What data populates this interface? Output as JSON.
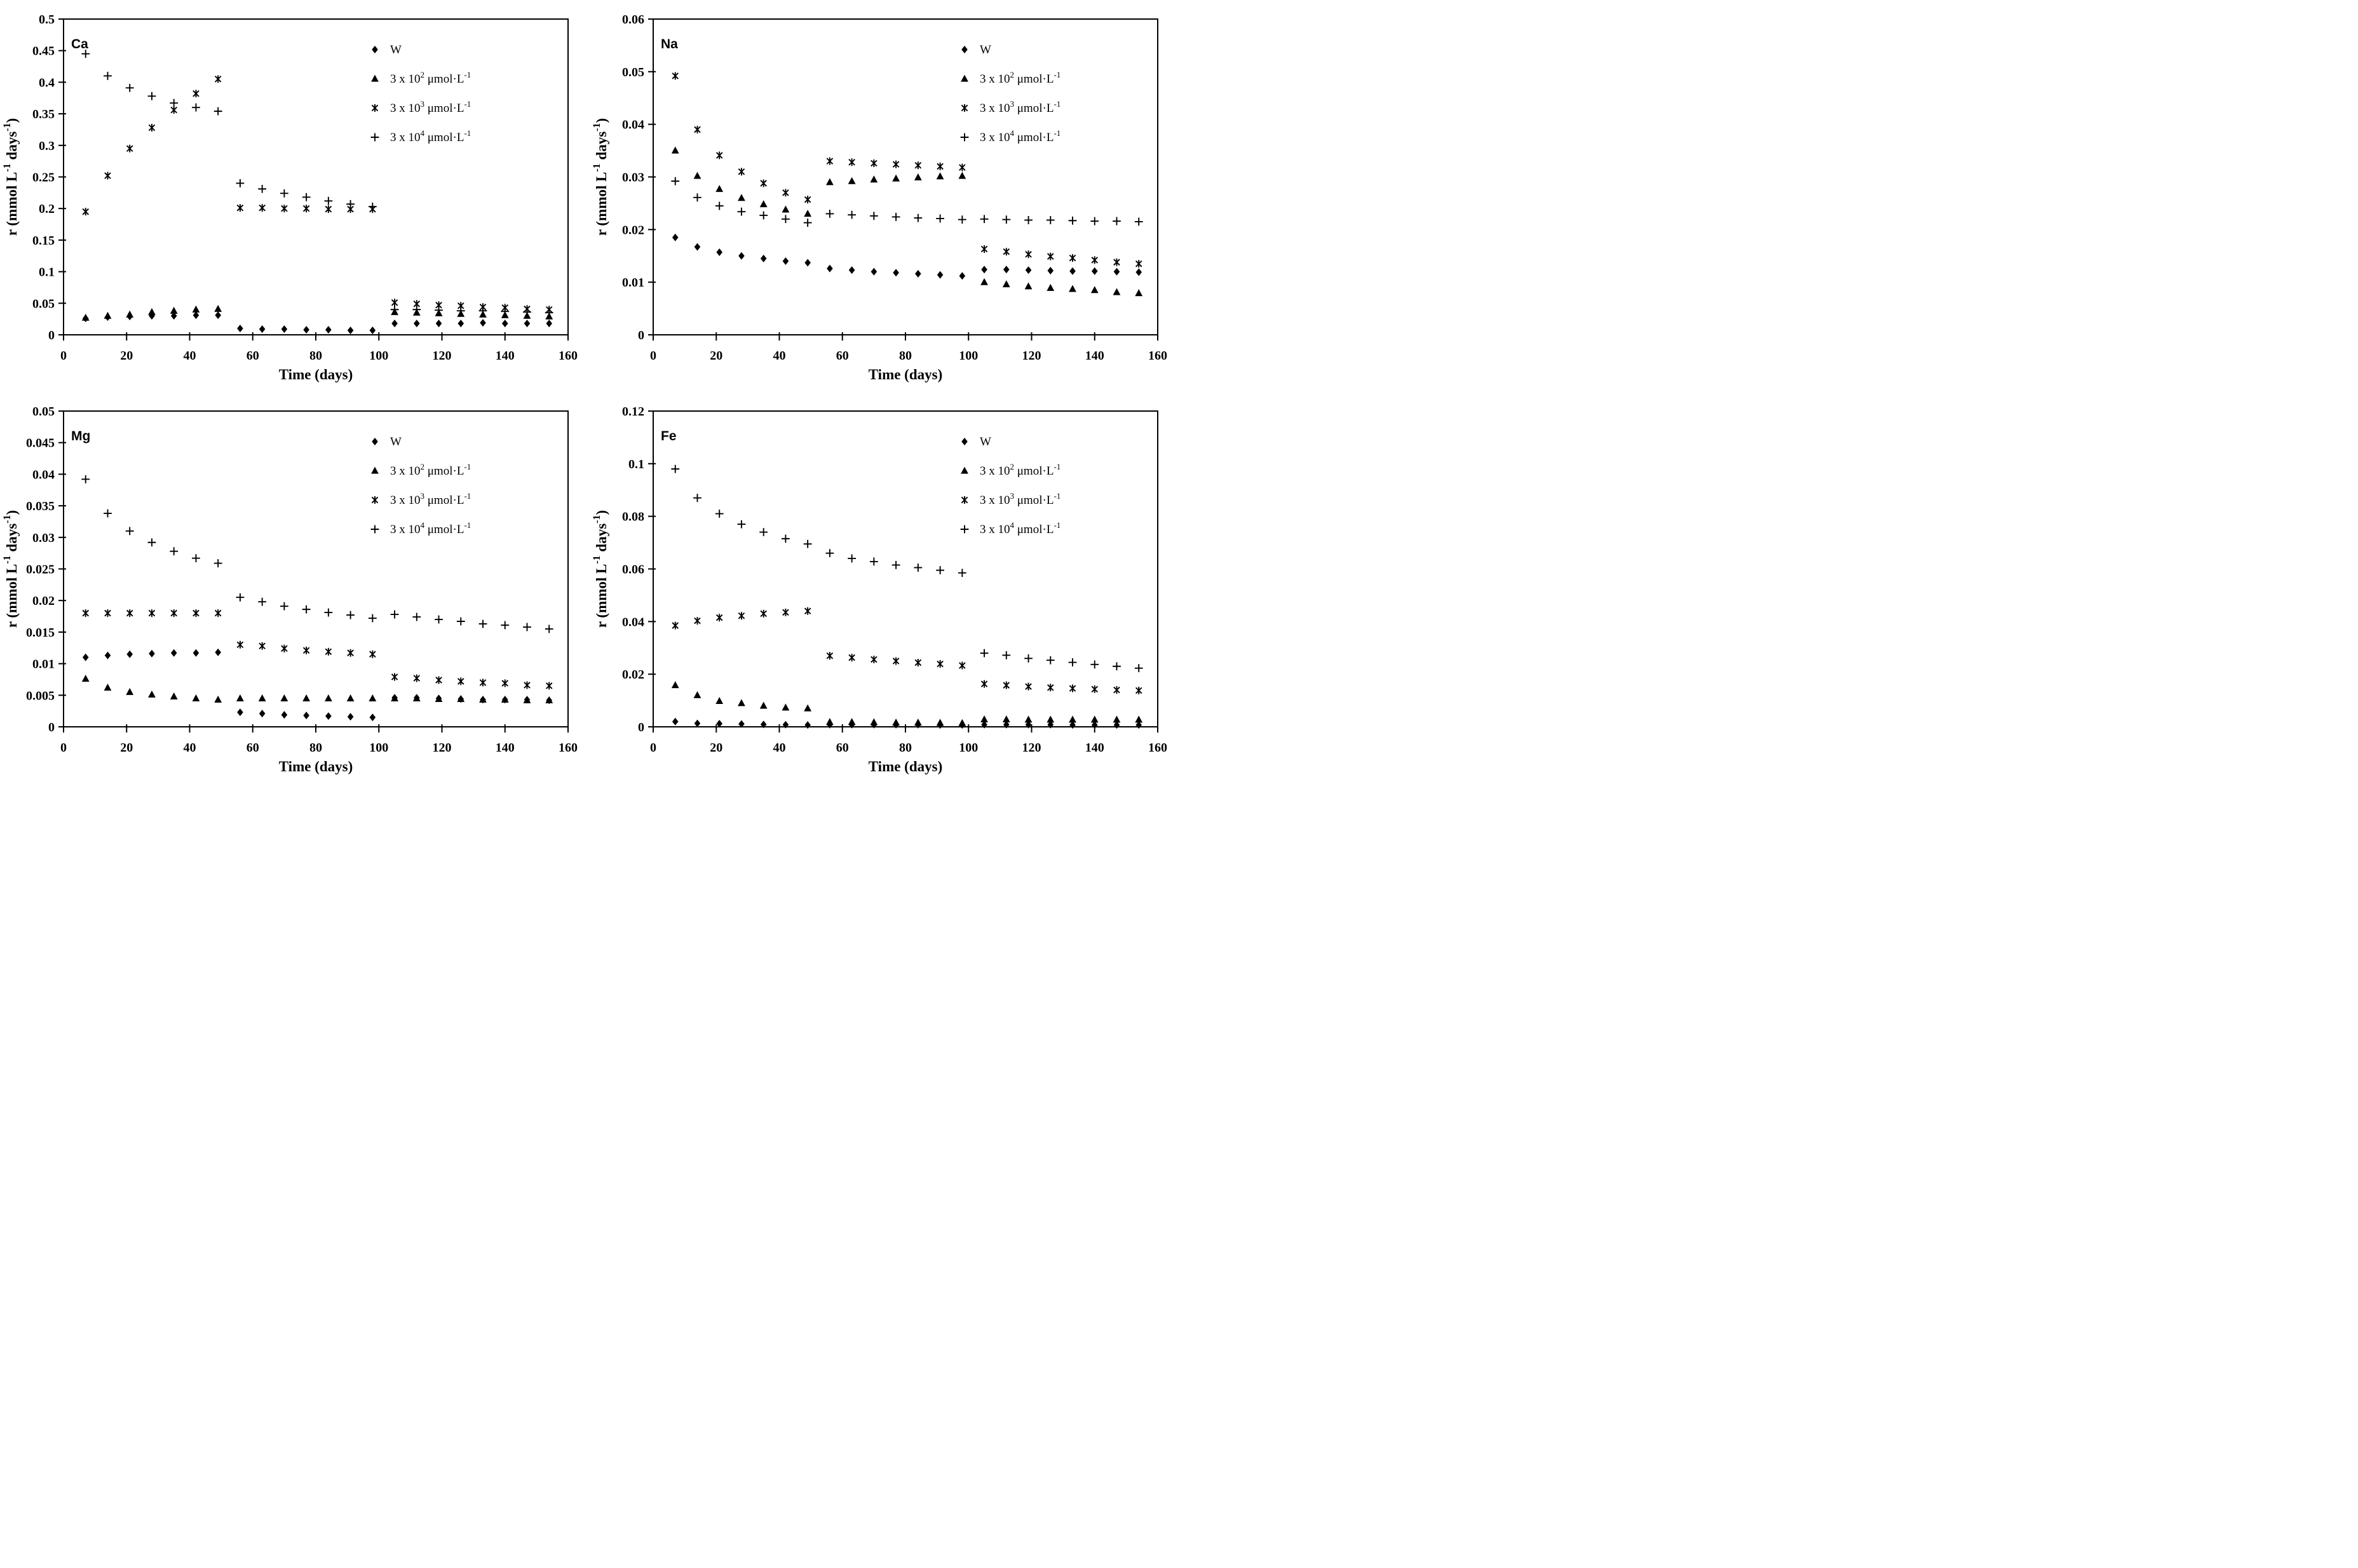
{
  "figure": {
    "background": "#ffffff",
    "marker_color": "#000000",
    "axis_color": "#000000",
    "xlabel": "Time (days)",
    "ylabel_parts": [
      [
        "t",
        "r (mmol L"
      ],
      [
        "s",
        "-1"
      ],
      [
        "t",
        " days"
      ],
      [
        "s",
        "-1"
      ],
      [
        "t",
        ")"
      ]
    ],
    "legend": [
      {
        "marker": "diamond",
        "parts": [
          [
            "t",
            "W"
          ]
        ]
      },
      {
        "marker": "triangle",
        "parts": [
          [
            "t",
            "3 x 10"
          ],
          [
            "s",
            "2"
          ],
          [
            "t",
            " μmol·L"
          ],
          [
            "s",
            "-1"
          ]
        ]
      },
      {
        "marker": "star",
        "parts": [
          [
            "t",
            "3 x 10"
          ],
          [
            "s",
            "3"
          ],
          [
            "t",
            " μmol·L"
          ],
          [
            "s",
            "-1"
          ]
        ]
      },
      {
        "marker": "plus",
        "parts": [
          [
            "t",
            "3 x 10"
          ],
          [
            "s",
            "4"
          ],
          [
            "t",
            " μmol·L"
          ],
          [
            "s",
            "-1"
          ]
        ]
      }
    ]
  },
  "chart_data": [
    {
      "type": "scatter",
      "label": "Ca",
      "xlabel": "Time (days)",
      "ylabel": "r (mmol L-1 days-1)",
      "xlim": [
        0,
        160
      ],
      "ylim": [
        0,
        0.5
      ],
      "xticks": [
        0,
        20,
        40,
        60,
        80,
        100,
        120,
        140,
        160
      ],
      "ytick_labels": [
        "0",
        "0.05",
        "0.1",
        "0.15",
        "0.2",
        "0.25",
        "0.3",
        "0.35",
        "0.4",
        "0.45",
        "0.5"
      ],
      "x": [
        7,
        14,
        21,
        28,
        35,
        42,
        49,
        56,
        63,
        70,
        77,
        84,
        91,
        98,
        105,
        112,
        119,
        126,
        133,
        140,
        147,
        154
      ],
      "series": [
        {
          "name": "W",
          "marker": "diamond",
          "values": [
            0.026,
            0.028,
            0.029,
            0.03,
            0.03,
            0.031,
            0.031,
            0.01,
            0.009,
            0.009,
            0.008,
            0.008,
            0.007,
            0.007,
            0.018,
            0.018,
            0.018,
            0.018,
            0.019,
            0.018,
            0.018,
            0.018
          ]
        },
        {
          "name": "3 x 10^2 μmol·L^-1",
          "marker": "triangle",
          "values": [
            0.027,
            0.03,
            0.032,
            0.036,
            0.038,
            0.04,
            0.041,
            null,
            null,
            null,
            null,
            null,
            null,
            null,
            0.036,
            0.035,
            0.034,
            0.033,
            0.032,
            0.031,
            0.03,
            0.029
          ]
        },
        {
          "name": "3 x 10^3 μmol·L^-1",
          "marker": "star",
          "values": [
            0.195,
            0.252,
            0.295,
            0.328,
            0.356,
            0.382,
            0.405,
            0.201,
            0.201,
            0.2,
            0.2,
            0.199,
            0.199,
            0.199,
            0.051,
            0.049,
            0.047,
            0.046,
            0.044,
            0.043,
            0.041,
            0.04
          ]
        },
        {
          "name": "3 x 10^4 μmol·L^-1",
          "marker": "plus",
          "values": [
            0.445,
            0.41,
            0.391,
            0.378,
            0.367,
            0.36,
            0.354,
            0.24,
            0.231,
            0.224,
            0.218,
            0.212,
            0.207,
            0.203,
            0.04,
            0.04,
            0.039,
            0.038,
            0.038,
            0.037,
            0.036,
            0.035
          ]
        }
      ]
    },
    {
      "type": "scatter",
      "label": "Na",
      "xlabel": "Time (days)",
      "ylabel": "r (mmol L-1 days-1)",
      "xlim": [
        0,
        160
      ],
      "ylim": [
        0,
        0.06
      ],
      "xticks": [
        0,
        20,
        40,
        60,
        80,
        100,
        120,
        140,
        160
      ],
      "ytick_labels": [
        "0",
        "0.01",
        "0.02",
        "0.03",
        "0.04",
        "0.05",
        "0.06"
      ],
      "x": [
        7,
        14,
        21,
        28,
        35,
        42,
        49,
        56,
        63,
        70,
        77,
        84,
        91,
        98,
        105,
        112,
        119,
        126,
        133,
        140,
        147,
        154
      ],
      "series": [
        {
          "name": "W",
          "marker": "diamond",
          "values": [
            0.0185,
            0.0167,
            0.0157,
            0.015,
            0.0145,
            0.014,
            0.0137,
            0.0126,
            0.0123,
            0.012,
            0.0118,
            0.0116,
            0.0114,
            0.0112,
            0.0124,
            0.0124,
            0.0123,
            0.0122,
            0.0121,
            0.0121,
            0.012,
            0.0119
          ]
        },
        {
          "name": "3 x 10^2 μmol·L^-1",
          "marker": "triangle",
          "values": [
            0.035,
            0.0302,
            0.0277,
            0.026,
            0.0248,
            0.0238,
            0.023,
            0.029,
            0.0292,
            0.0295,
            0.0297,
            0.0299,
            0.0301,
            0.0302,
            0.01,
            0.0096,
            0.0092,
            0.0089,
            0.0087,
            0.0085,
            0.0081,
            0.0079
          ]
        },
        {
          "name": "3 x 10^3 μmol·L^-1",
          "marker": "star",
          "values": [
            0.0492,
            0.039,
            0.0341,
            0.031,
            0.0288,
            0.027,
            0.0257,
            0.033,
            0.0328,
            0.0326,
            0.0324,
            0.0322,
            0.032,
            0.0318,
            0.0163,
            0.0158,
            0.0153,
            0.0149,
            0.0146,
            0.0142,
            0.0138,
            0.0135
          ]
        },
        {
          "name": "3 x 10^4 μmol·L^-1",
          "marker": "plus",
          "values": [
            0.0292,
            0.0261,
            0.0245,
            0.0234,
            0.0227,
            0.022,
            0.0213,
            0.023,
            0.0228,
            0.0226,
            0.0224,
            0.0222,
            0.0221,
            0.0219,
            0.022,
            0.0219,
            0.0218,
            0.0218,
            0.0217,
            0.0216,
            0.0216,
            0.0215
          ]
        }
      ]
    },
    {
      "type": "scatter",
      "label": "Mg",
      "xlabel": "Time (days)",
      "ylabel": "r (mmol L-1 days-1)",
      "xlim": [
        0,
        160
      ],
      "ylim": [
        0,
        0.05
      ],
      "xticks": [
        0,
        20,
        40,
        60,
        80,
        100,
        120,
        140,
        160
      ],
      "ytick_labels": [
        "0",
        "0.005",
        "0.01",
        "0.015",
        "0.02",
        "0.025",
        "0.03",
        "0.035",
        "0.04",
        "0.045",
        "0.05"
      ],
      "x": [
        7,
        14,
        21,
        28,
        35,
        42,
        49,
        56,
        63,
        70,
        77,
        84,
        91,
        98,
        105,
        112,
        119,
        126,
        133,
        140,
        147,
        154
      ],
      "series": [
        {
          "name": "W",
          "marker": "diamond",
          "values": [
            0.011,
            0.0113,
            0.0115,
            0.0116,
            0.0117,
            0.0117,
            0.0118,
            0.0023,
            0.0021,
            0.0019,
            0.0018,
            0.0017,
            0.0016,
            0.0015,
            0.0046,
            0.0046,
            0.0045,
            0.0044,
            0.0043,
            0.0043,
            0.0043,
            0.0042
          ]
        },
        {
          "name": "3 x 10^2 μmol·L^-1",
          "marker": "triangle",
          "values": [
            0.0076,
            0.0062,
            0.0055,
            0.0051,
            0.0048,
            0.0045,
            0.0043,
            0.0045,
            0.0045,
            0.0045,
            0.0045,
            0.0045,
            0.0045,
            0.0045,
            0.0045,
            0.0045,
            0.0044,
            0.0044,
            0.0043,
            0.0043,
            0.0042,
            0.0042
          ]
        },
        {
          "name": "3 x 10^3 μmol·L^-1",
          "marker": "star",
          "values": [
            0.018,
            0.018,
            0.018,
            0.018,
            0.018,
            0.018,
            0.018,
            0.013,
            0.0128,
            0.0124,
            0.0121,
            0.0119,
            0.0117,
            0.0115,
            0.0079,
            0.0077,
            0.0074,
            0.0072,
            0.007,
            0.0069,
            0.0066,
            0.0065
          ]
        },
        {
          "name": "3 x 10^4 μmol·L^-1",
          "marker": "plus",
          "values": [
            0.0392,
            0.0338,
            0.031,
            0.0292,
            0.0278,
            0.0267,
            0.0259,
            0.0205,
            0.0198,
            0.0191,
            0.0186,
            0.0181,
            0.0177,
            0.0172,
            0.0178,
            0.0174,
            0.017,
            0.0167,
            0.0163,
            0.0161,
            0.0158,
            0.0155
          ]
        }
      ]
    },
    {
      "type": "scatter",
      "label": "Fe",
      "xlabel": "Time (days)",
      "ylabel": "r (mmol L-1 days-1)",
      "xlim": [
        0,
        160
      ],
      "ylim": [
        0,
        0.12
      ],
      "xticks": [
        0,
        20,
        40,
        60,
        80,
        100,
        120,
        140,
        160
      ],
      "ytick_labels": [
        "0",
        "0.02",
        "0.04",
        "0.06",
        "0.08",
        "0.1",
        "0.12"
      ],
      "x": [
        7,
        14,
        21,
        28,
        35,
        42,
        49,
        56,
        63,
        70,
        77,
        84,
        91,
        98,
        105,
        112,
        119,
        126,
        133,
        140,
        147,
        154
      ],
      "series": [
        {
          "name": "W",
          "marker": "diamond",
          "values": [
            0.002,
            0.0013,
            0.0012,
            0.0011,
            0.0009,
            0.0008,
            0.0007,
            0.0008,
            0.0008,
            0.0008,
            0.0008,
            0.0008,
            0.0007,
            0.0007,
            0.0008,
            0.0008,
            0.0008,
            0.0008,
            0.0007,
            0.0007,
            0.0007,
            0.0007
          ]
        },
        {
          "name": "3 x 10^2 μmol·L^-1",
          "marker": "triangle",
          "values": [
            0.0158,
            0.012,
            0.0098,
            0.009,
            0.008,
            0.0073,
            0.007,
            0.0018,
            0.0018,
            0.0017,
            0.0016,
            0.0016,
            0.0015,
            0.0014,
            0.0028,
            0.0028,
            0.0027,
            0.0027,
            0.0027,
            0.0027,
            0.0027,
            0.0027
          ]
        },
        {
          "name": "3 x 10^3 μmol·L^-1",
          "marker": "star",
          "values": [
            0.0385,
            0.0403,
            0.0415,
            0.0422,
            0.043,
            0.0435,
            0.044,
            0.027,
            0.0263,
            0.0256,
            0.025,
            0.0244,
            0.0239,
            0.0233,
            0.0163,
            0.0158,
            0.0153,
            0.0149,
            0.0146,
            0.0143,
            0.014,
            0.0138
          ]
        },
        {
          "name": "3 x 10^4 μmol·L^-1",
          "marker": "plus",
          "values": [
            0.098,
            0.087,
            0.081,
            0.077,
            0.074,
            0.0715,
            0.0695,
            0.066,
            0.064,
            0.0628,
            0.0615,
            0.0605,
            0.0595,
            0.0585,
            0.028,
            0.0272,
            0.026,
            0.0253,
            0.0245,
            0.0237,
            0.023,
            0.0223
          ]
        }
      ]
    }
  ]
}
